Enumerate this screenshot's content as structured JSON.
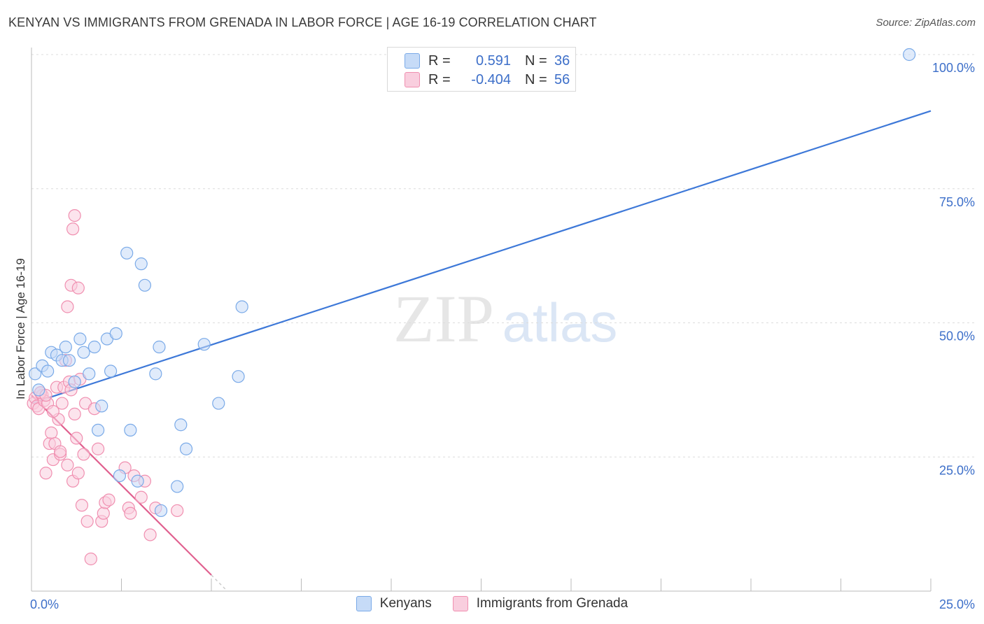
{
  "title": "KENYAN VS IMMIGRANTS FROM GRENADA IN LABOR FORCE | AGE 16-19 CORRELATION CHART",
  "source": "Source: ZipAtlas.com",
  "watermark": {
    "zip": "ZIP",
    "atlas": "atlas"
  },
  "stats": [
    {
      "r_label": "R =",
      "r_value": "0.591",
      "n_label": "N =",
      "n_value": "36",
      "color": "#7aaae8",
      "fill": "#c6dbf7"
    },
    {
      "r_label": "R =",
      "r_value": "-0.404",
      "n_label": "N =",
      "n_value": "56",
      "color": "#f08fb0",
      "fill": "#f9cede"
    }
  ],
  "legend": [
    {
      "label": "Kenyans",
      "color": "#7aaae8",
      "fill": "#c6dbf7"
    },
    {
      "label": "Immigrants from Grenada",
      "color": "#f08fb0",
      "fill": "#f9cede"
    }
  ],
  "chart_data": {
    "type": "scatter",
    "title": "KENYAN VS IMMIGRANTS FROM GRENADA IN LABOR FORCE | AGE 16-19 CORRELATION CHART",
    "xlabel": "",
    "ylabel": "In Labor Force | Age 16-19",
    "xlim": [
      0,
      25
    ],
    "ylim": [
      0,
      100
    ],
    "x_tick_labels": [
      {
        "value": 0,
        "label": "0.0%"
      },
      {
        "value": 25,
        "label": "25.0%"
      }
    ],
    "y_tick_labels": [
      {
        "value": 100,
        "label": "100.0%"
      },
      {
        "value": 75,
        "label": "75.0%"
      },
      {
        "value": 50,
        "label": "50.0%"
      },
      {
        "value": 25,
        "label": "25.0%"
      }
    ],
    "series": [
      {
        "name": "Kenyans",
        "color": "#3d78d8",
        "points": [
          [
            0.1,
            40.5
          ],
          [
            0.2,
            37.5
          ],
          [
            0.3,
            42.0
          ],
          [
            0.45,
            41.0
          ],
          [
            0.55,
            44.5
          ],
          [
            0.7,
            44.0
          ],
          [
            0.85,
            43.0
          ],
          [
            0.95,
            45.5
          ],
          [
            1.05,
            43.0
          ],
          [
            1.2,
            39.0
          ],
          [
            1.35,
            47.0
          ],
          [
            1.45,
            44.5
          ],
          [
            1.6,
            40.5
          ],
          [
            1.75,
            45.5
          ],
          [
            1.85,
            30.0
          ],
          [
            1.95,
            34.5
          ],
          [
            2.1,
            47.0
          ],
          [
            2.2,
            41.0
          ],
          [
            2.35,
            48.0
          ],
          [
            2.45,
            21.5
          ],
          [
            2.65,
            63.0
          ],
          [
            2.75,
            30.0
          ],
          [
            2.95,
            20.5
          ],
          [
            3.05,
            61.0
          ],
          [
            3.15,
            57.0
          ],
          [
            3.45,
            40.5
          ],
          [
            3.55,
            45.5
          ],
          [
            3.6,
            15.0
          ],
          [
            4.05,
            19.5
          ],
          [
            4.15,
            31.0
          ],
          [
            4.3,
            26.5
          ],
          [
            4.8,
            46.0
          ],
          [
            5.2,
            35.0
          ],
          [
            5.75,
            40.0
          ],
          [
            5.85,
            53.0
          ],
          [
            24.4,
            100.0
          ]
        ],
        "trend": {
          "x": [
            0,
            25
          ],
          "y": [
            35.0,
            89.5
          ]
        }
      },
      {
        "name": "Immigrants from Grenada",
        "color": "#e0608f",
        "points": [
          [
            0.05,
            35.0
          ],
          [
            0.1,
            36.0
          ],
          [
            0.15,
            34.5
          ],
          [
            0.2,
            34.0
          ],
          [
            0.25,
            37.0
          ],
          [
            0.3,
            36.5
          ],
          [
            0.35,
            35.5
          ],
          [
            0.4,
            22.0
          ],
          [
            0.45,
            35.0
          ],
          [
            0.5,
            27.5
          ],
          [
            0.55,
            29.5
          ],
          [
            0.6,
            24.5
          ],
          [
            0.65,
            27.5
          ],
          [
            0.7,
            38.0
          ],
          [
            0.75,
            32.0
          ],
          [
            0.8,
            25.5
          ],
          [
            0.85,
            35.0
          ],
          [
            0.9,
            38.0
          ],
          [
            0.95,
            43.0
          ],
          [
            1.0,
            23.5
          ],
          [
            1.05,
            39.0
          ],
          [
            1.1,
            37.5
          ],
          [
            1.15,
            20.5
          ],
          [
            1.2,
            33.0
          ],
          [
            1.25,
            28.5
          ],
          [
            1.3,
            22.0
          ],
          [
            1.35,
            39.5
          ],
          [
            1.4,
            16.0
          ],
          [
            1.45,
            25.5
          ],
          [
            1.5,
            35.0
          ],
          [
            0.6,
            33.5
          ],
          [
            0.8,
            26.0
          ],
          [
            1.1,
            57.0
          ],
          [
            1.2,
            70.0
          ],
          [
            1.3,
            56.5
          ],
          [
            1.0,
            53.0
          ],
          [
            1.15,
            67.5
          ],
          [
            1.55,
            13.0
          ],
          [
            1.65,
            6.0
          ],
          [
            1.75,
            34.0
          ],
          [
            1.85,
            26.5
          ],
          [
            1.95,
            13.0
          ],
          [
            2.0,
            14.5
          ],
          [
            2.05,
            16.5
          ],
          [
            2.15,
            17.0
          ],
          [
            2.6,
            23.0
          ],
          [
            2.7,
            15.5
          ],
          [
            2.75,
            14.5
          ],
          [
            2.85,
            21.5
          ],
          [
            3.05,
            17.5
          ],
          [
            3.15,
            20.5
          ],
          [
            3.3,
            10.5
          ],
          [
            3.45,
            15.5
          ],
          [
            4.05,
            15.0
          ],
          [
            0.25,
            37.0
          ],
          [
            0.4,
            36.5
          ]
        ],
        "trend": {
          "x": [
            0,
            5.0
          ],
          "y": [
            36.5,
            3.0
          ]
        }
      }
    ]
  }
}
